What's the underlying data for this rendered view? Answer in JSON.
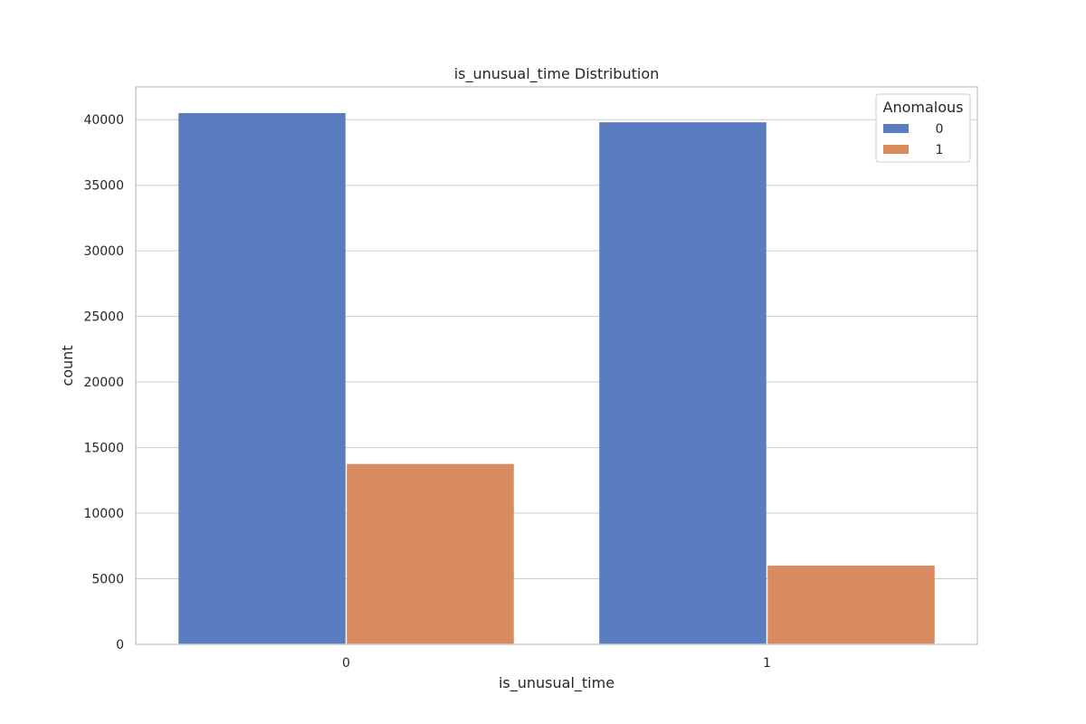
{
  "chart_data": {
    "type": "bar",
    "title": "is_unusual_time Distribution",
    "xlabel": "is_unusual_time",
    "ylabel": "count",
    "categories": [
      "0",
      "1"
    ],
    "series": [
      {
        "name": "0",
        "values": [
          40500,
          39800
        ],
        "color": "#5a7dc0"
      },
      {
        "name": "1",
        "values": [
          13750,
          6000
        ],
        "color": "#d98a5f"
      }
    ],
    "ylim": [
      0,
      42500
    ],
    "yticks": [
      0,
      5000,
      10000,
      15000,
      20000,
      25000,
      30000,
      35000,
      40000
    ],
    "grid": "horizontal",
    "legend": {
      "title": "Anomalous",
      "placement": "top-right"
    }
  }
}
